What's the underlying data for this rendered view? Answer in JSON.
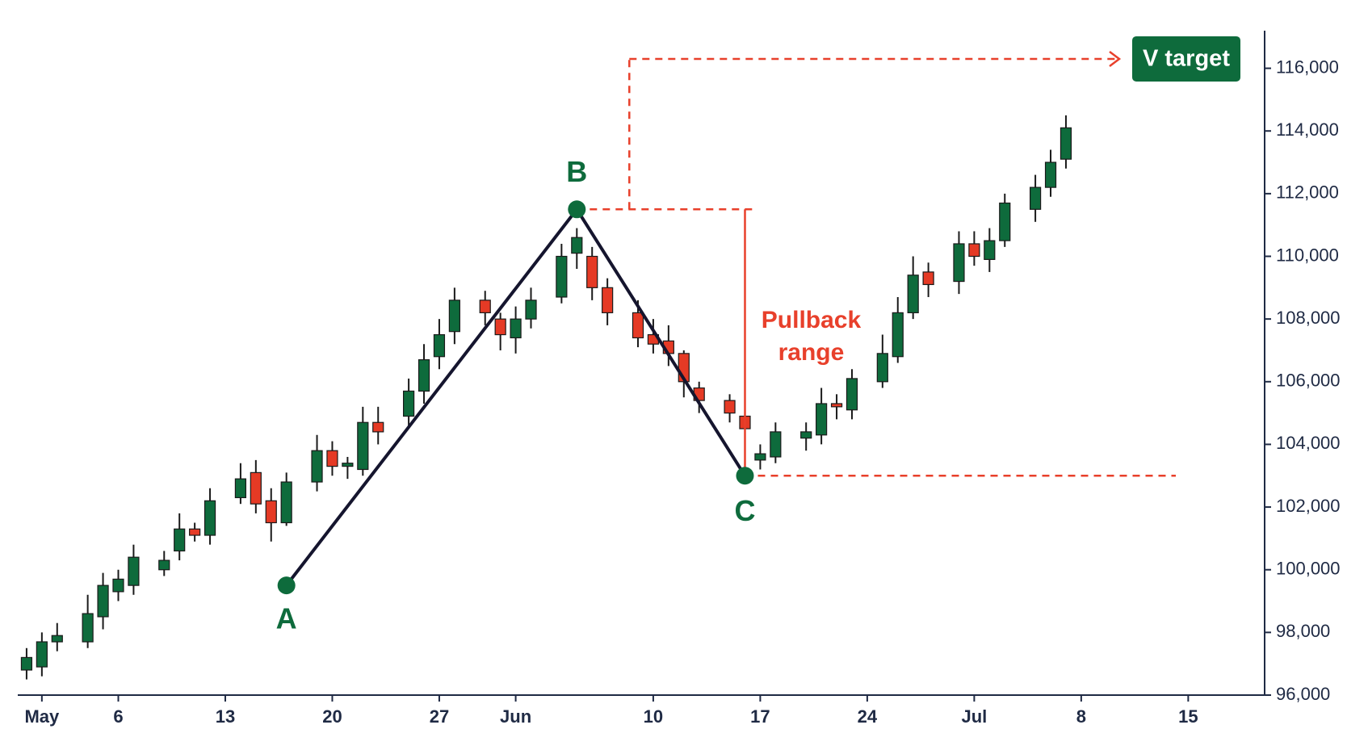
{
  "chart_data": {
    "type": "candlestick",
    "up_color": "#0e6b3c",
    "down_color": "#e53a25",
    "x": [
      "04-30",
      "05-01",
      "05-02",
      "05-04",
      "05-05",
      "05-06",
      "05-07",
      "05-09",
      "05-10",
      "05-11",
      "05-12",
      "05-14",
      "05-15",
      "05-16",
      "05-17",
      "05-19",
      "05-20",
      "05-21",
      "05-22",
      "05-23",
      "05-25",
      "05-26",
      "05-27",
      "05-28",
      "05-30",
      "05-31",
      "06-01",
      "06-02",
      "06-04",
      "06-05",
      "06-06",
      "06-07",
      "06-09",
      "06-10",
      "06-11",
      "06-12",
      "06-13",
      "06-15",
      "06-16",
      "06-17",
      "06-18",
      "06-20",
      "06-21",
      "06-22",
      "06-23",
      "06-25",
      "06-26",
      "06-27",
      "06-28",
      "06-30",
      "07-01",
      "07-02",
      "07-03",
      "07-05",
      "07-06",
      "07-07"
    ],
    "open": [
      96800,
      96900,
      97700,
      97700,
      98500,
      99300,
      99500,
      100000,
      100600,
      101300,
      101100,
      102300,
      103100,
      102200,
      101500,
      102800,
      103800,
      103300,
      103200,
      104700,
      104900,
      105700,
      106800,
      107600,
      108600,
      108000,
      107400,
      108000,
      108700,
      110100,
      110000,
      109000,
      108200,
      107500,
      107300,
      106900,
      105800,
      105400,
      104900,
      103500,
      103600,
      104200,
      104300,
      105300,
      105100,
      106000,
      106800,
      108200,
      109500,
      109200,
      110400,
      109900,
      110500,
      111500,
      112200,
      113100
    ],
    "high": [
      97500,
      98000,
      98300,
      99200,
      99900,
      100000,
      100800,
      100600,
      101800,
      101500,
      102600,
      103400,
      103500,
      102600,
      103100,
      104300,
      104100,
      103600,
      105200,
      105200,
      106100,
      107200,
      108000,
      109000,
      108900,
      108200,
      108400,
      109000,
      110400,
      110900,
      110300,
      109300,
      108600,
      108000,
      107800,
      107000,
      106000,
      105600,
      105100,
      104000,
      104700,
      104700,
      105800,
      105600,
      106400,
      107500,
      108700,
      110000,
      109800,
      110800,
      110800,
      110900,
      112000,
      112600,
      113400,
      114500
    ],
    "low": [
      96500,
      96600,
      97400,
      97500,
      98100,
      99000,
      99200,
      99800,
      100300,
      100900,
      100800,
      102100,
      101800,
      100900,
      101400,
      102500,
      103000,
      102900,
      103000,
      104000,
      104500,
      105300,
      106400,
      107200,
      107800,
      107000,
      106900,
      107700,
      108500,
      109600,
      108600,
      107800,
      107100,
      106900,
      106500,
      105500,
      105000,
      104700,
      104100,
      103200,
      103400,
      103800,
      104000,
      104800,
      104800,
      105800,
      106600,
      108000,
      108700,
      108800,
      109700,
      109500,
      110300,
      111100,
      111900,
      112800
    ],
    "close": [
      97200,
      97700,
      97900,
      98600,
      99500,
      99700,
      100400,
      100300,
      101300,
      101100,
      102200,
      102900,
      102100,
      101500,
      102800,
      103800,
      103300,
      103400,
      104700,
      104400,
      105700,
      106700,
      107500,
      108600,
      108200,
      107500,
      108000,
      108600,
      110000,
      110600,
      109000,
      108200,
      107400,
      107200,
      106900,
      106000,
      105400,
      105000,
      104500,
      103700,
      104400,
      104400,
      105300,
      105200,
      106100,
      106900,
      108200,
      109400,
      109100,
      110400,
      110000,
      110500,
      111700,
      112200,
      113000,
      114100
    ],
    "xlim": [
      "04-29",
      "07-20"
    ],
    "xticks": [
      {
        "value": "05-01",
        "label": "May"
      },
      {
        "value": "05-06",
        "label": "6"
      },
      {
        "value": "05-13",
        "label": "13"
      },
      {
        "value": "05-20",
        "label": "20"
      },
      {
        "value": "05-27",
        "label": "27"
      },
      {
        "value": "06-01",
        "label": "Jun"
      },
      {
        "value": "06-10",
        "label": "10"
      },
      {
        "value": "06-17",
        "label": "17"
      },
      {
        "value": "06-24",
        "label": "24"
      },
      {
        "value": "07-01",
        "label": "Jul"
      },
      {
        "value": "07-08",
        "label": "8"
      },
      {
        "value": "07-15",
        "label": "15"
      }
    ],
    "ylim": [
      96000,
      117200
    ],
    "yticks": [
      {
        "value": 96000,
        "label": "96,000"
      },
      {
        "value": 98000,
        "label": "98,000"
      },
      {
        "value": 100000,
        "label": "100,000"
      },
      {
        "value": 102000,
        "label": "102,000"
      },
      {
        "value": 104000,
        "label": "104,000"
      },
      {
        "value": 106000,
        "label": "106,000"
      },
      {
        "value": 108000,
        "label": "108,000"
      },
      {
        "value": 110000,
        "label": "110,000"
      },
      {
        "value": 112000,
        "label": "112,000"
      },
      {
        "value": 114000,
        "label": "114,000"
      },
      {
        "value": 116000,
        "label": "116,000"
      }
    ],
    "points": [
      {
        "label": "A",
        "x": "05-17",
        "value": 99500
      },
      {
        "label": "B",
        "x": "06-05",
        "value": 111500
      },
      {
        "label": "C",
        "x": "06-16",
        "value": 103000
      }
    ],
    "line_color": "#15152e",
    "point_color": "#0e6b3c",
    "annotation_color": "#e8402b",
    "pullback_label": [
      "Pullback",
      "range"
    ],
    "target": {
      "label": "V target",
      "value": 116300
    }
  }
}
